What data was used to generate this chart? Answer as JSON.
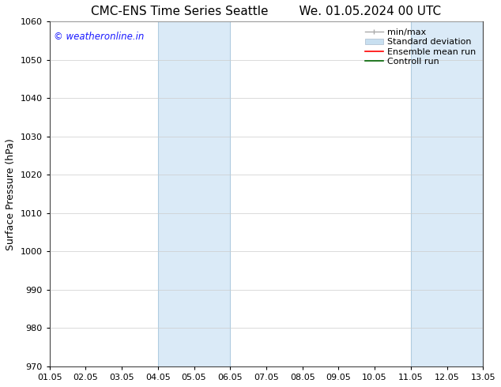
{
  "title_left": "CMC-ENS Time Series Seattle",
  "title_right": "We. 01.05.2024 00 UTC",
  "ylabel": "Surface Pressure (hPa)",
  "ylim": [
    970,
    1060
  ],
  "yticks": [
    970,
    980,
    990,
    1000,
    1010,
    1020,
    1030,
    1040,
    1050,
    1060
  ],
  "xlim_start": 0,
  "xlim_end": 12,
  "xtick_positions": [
    0,
    1,
    2,
    3,
    4,
    5,
    6,
    7,
    8,
    9,
    10,
    11,
    12
  ],
  "xtick_labels": [
    "01.05",
    "02.05",
    "03.05",
    "04.05",
    "05.05",
    "06.05",
    "07.05",
    "08.05",
    "09.05",
    "10.05",
    "11.05",
    "12.05",
    "13.05"
  ],
  "shaded_bands": [
    {
      "x_start": 3,
      "x_end": 4,
      "color": "#daeaf7"
    },
    {
      "x_start": 4,
      "x_end": 5,
      "color": "#daeaf7"
    },
    {
      "x_start": 10,
      "x_end": 11,
      "color": "#daeaf7"
    },
    {
      "x_start": 11,
      "x_end": 12,
      "color": "#daeaf7"
    }
  ],
  "band_edge_color": "#b0cce0",
  "watermark_text": "© weatheronline.in",
  "watermark_color": "#1a1aff",
  "bg_color": "#ffffff",
  "grid_color": "#cccccc",
  "title_fontsize": 11,
  "axis_label_fontsize": 9,
  "tick_fontsize": 8,
  "legend_fontsize": 8
}
